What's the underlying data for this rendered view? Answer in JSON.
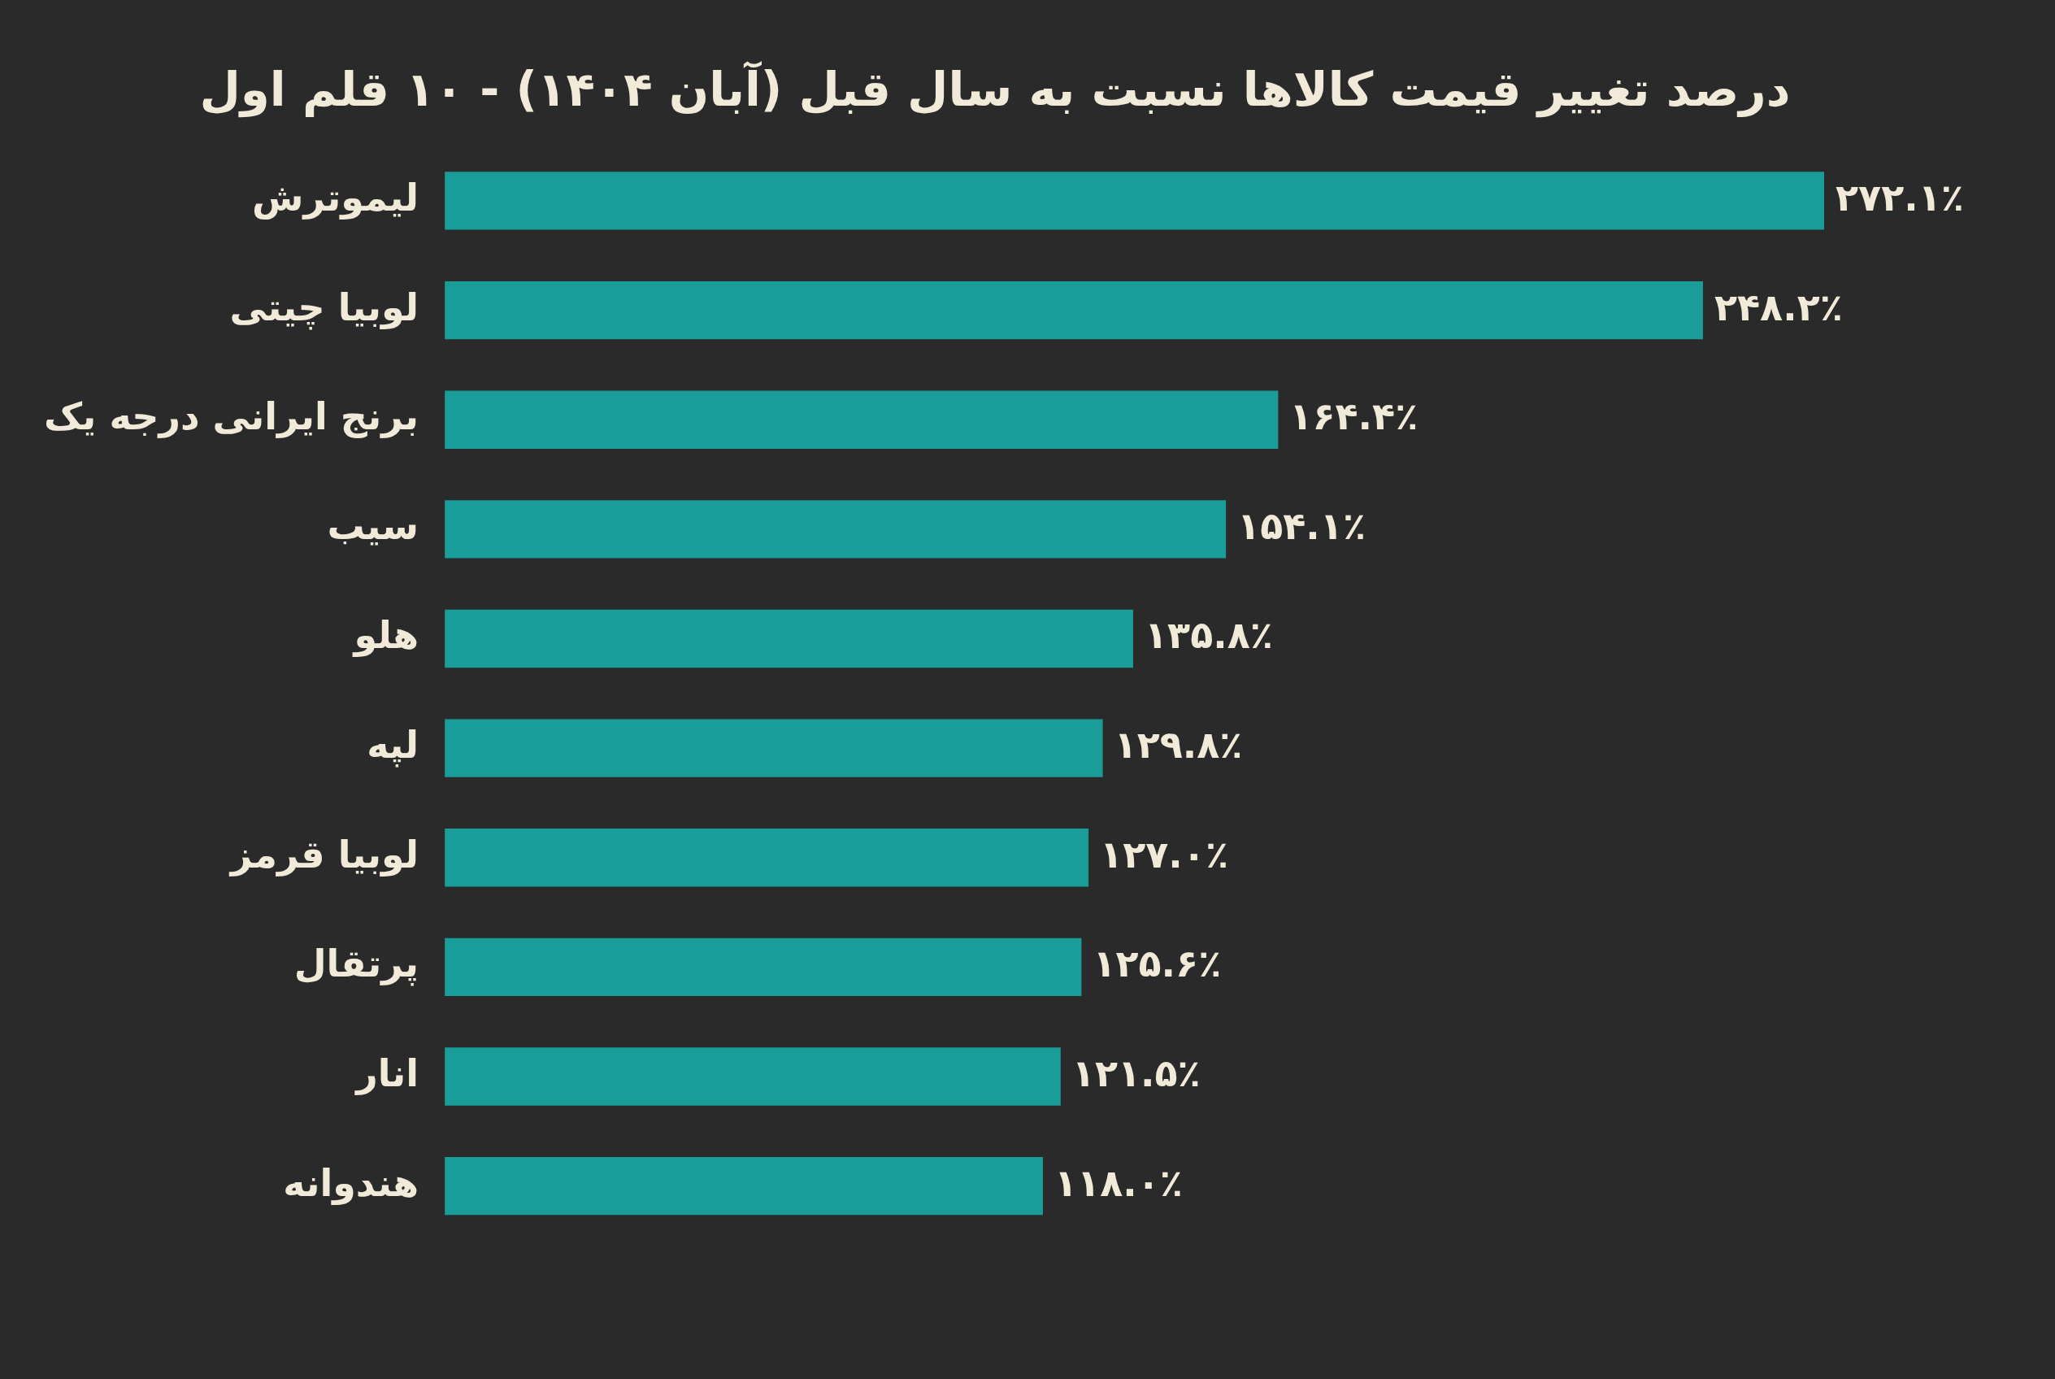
{
  "chart_data": {
    "type": "bar",
    "orientation": "horizontal",
    "title": "درصد تغییر قیمت کالاها نسبت به سال قبل (آبان ۱۴۰۴) - ۱۰ قلم اول",
    "categories": [
      "لیموترش",
      "لوبیا چیتی",
      "برنج ایرانی درجه یک",
      "سیب",
      "هلو",
      "لپه",
      "لوبیا قرمز",
      "پرتقال",
      "انار",
      "هندوانه"
    ],
    "values": [
      272.1,
      248.2,
      164.4,
      154.1,
      135.8,
      129.8,
      127.0,
      125.6,
      121.5,
      118.0
    ],
    "value_labels": [
      "۲۷۲.۱٪",
      "۲۴۸.۲٪",
      "۱۶۴.۴٪",
      "۱۵۴.۱٪",
      "۱۳۵.۸٪",
      "۱۲۹.۸٪",
      "۱۲۷.۰٪",
      "۱۲۵.۶٪",
      "۱۲۱.۵٪",
      "۱۱۸.۰٪"
    ],
    "color": "#1a9c98",
    "tick_labels": "y"
  }
}
